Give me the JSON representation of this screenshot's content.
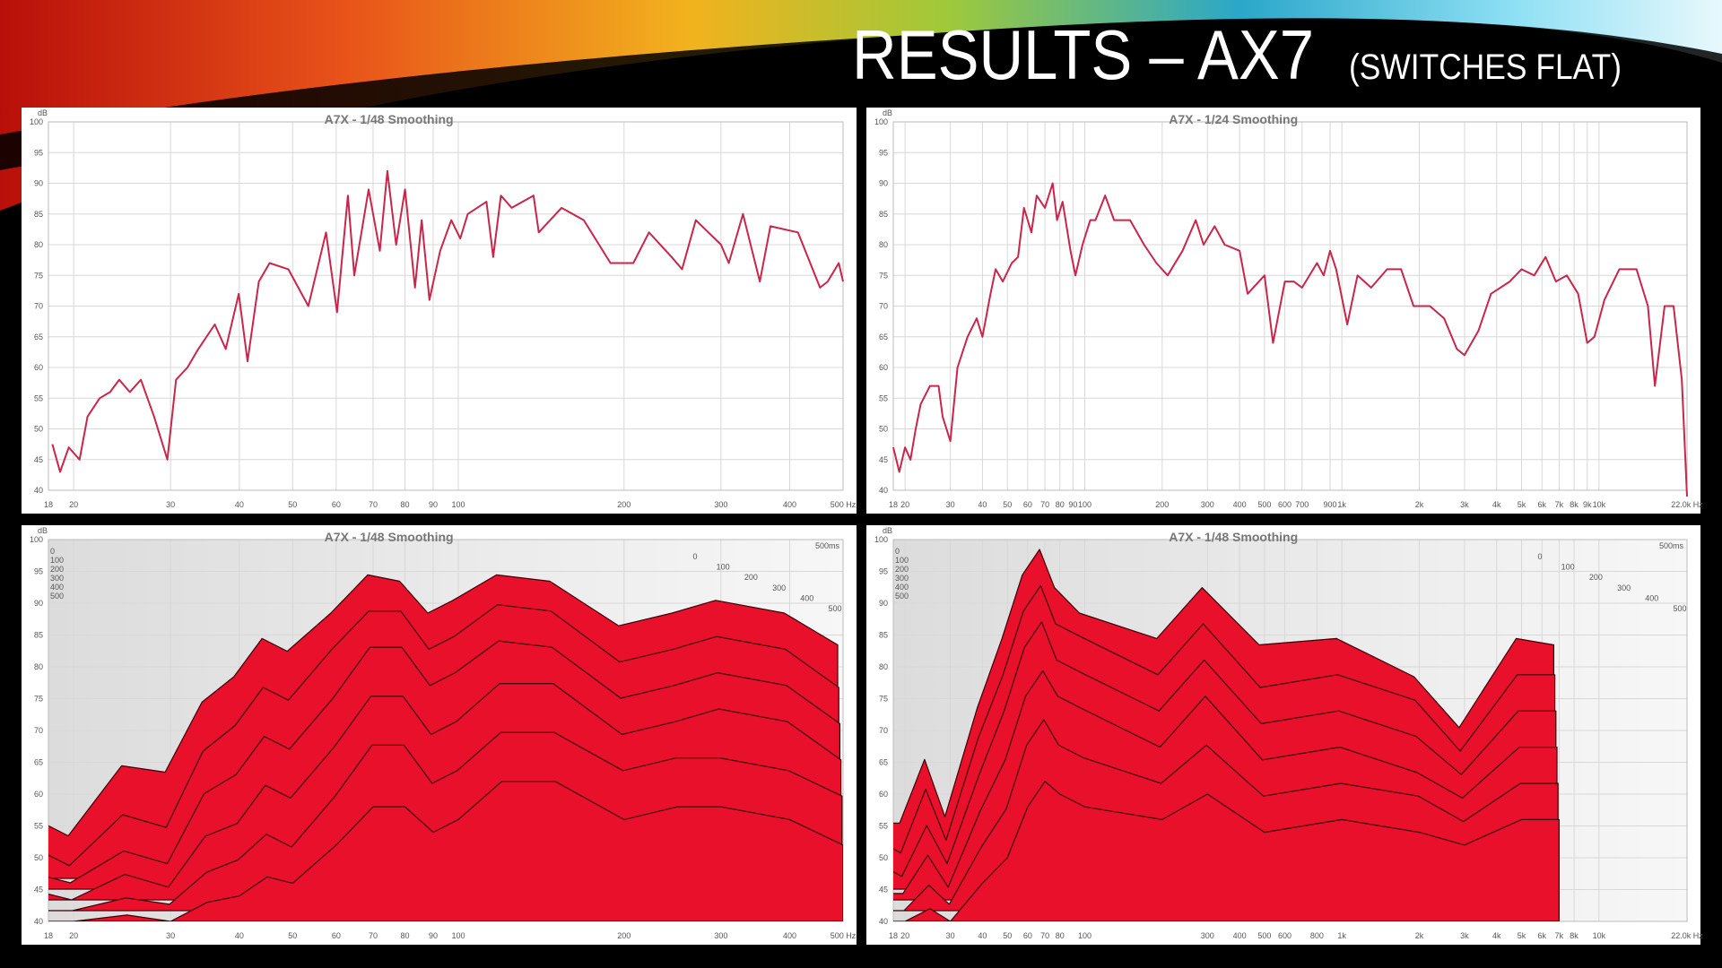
{
  "title": "RESULTS – AX7",
  "subtitle": "(SWITCHES FLAT)",
  "chart_data": [
    {
      "type": "line",
      "title": "A7X - 1/48 Smoothing",
      "y_label": "dB",
      "xscale": "log",
      "color": "#c8264a",
      "grid": true,
      "xlim": [
        18,
        500
      ],
      "ylim": [
        40,
        100
      ],
      "yticks": [
        40,
        45,
        50,
        55,
        60,
        65,
        70,
        75,
        80,
        85,
        90,
        95,
        100
      ],
      "xticks": [
        18,
        20,
        30,
        40,
        50,
        60,
        70,
        80,
        90,
        100,
        200,
        300,
        400,
        {
          "value": 500,
          "label": "500 Hz"
        }
      ],
      "x": [
        18.3,
        18.9,
        19.6,
        20.5,
        21.2,
        22.3,
        23.3,
        24.2,
        25.3,
        26.5,
        28.0,
        29.6,
        30.7,
        32.2,
        33.7,
        36.1,
        37.8,
        39.9,
        41.4,
        43.4,
        45.4,
        49.1,
        53.4,
        57.5,
        60.2,
        63,
        64.7,
        68.7,
        72,
        74.3,
        77.1,
        80,
        83.4,
        85.8,
        88.6,
        92.7,
        97.1,
        100.8,
        104,
        112.5,
        115.7,
        119.5,
        125,
        137,
        140,
        154,
        169,
        189,
        208,
        222,
        244,
        255,
        270,
        300,
        310,
        329,
        353,
        369,
        414,
        454,
        469,
        491,
        500
      ],
      "values": [
        47.5,
        43,
        47,
        45,
        52,
        55,
        56,
        58,
        56,
        58,
        52,
        45,
        58,
        60,
        63,
        67,
        63,
        72,
        61,
        74,
        77,
        76,
        70,
        82,
        69,
        88,
        75,
        89,
        79,
        92,
        80,
        89,
        73,
        84,
        71,
        79,
        84,
        81,
        85,
        87,
        78,
        88,
        86,
        88,
        82,
        86,
        84,
        77,
        77,
        82,
        78,
        76,
        84,
        80,
        77,
        85,
        74,
        83,
        82,
        73,
        74,
        77,
        74
      ]
    },
    {
      "type": "line",
      "title": "A7X - 1/24 Smoothing",
      "y_label": "dB",
      "xscale": "log",
      "color": "#c8264a",
      "grid": true,
      "xlim": [
        18,
        22000
      ],
      "ylim": [
        40,
        100
      ],
      "yticks": [
        40,
        45,
        50,
        55,
        60,
        65,
        70,
        75,
        80,
        85,
        90,
        95,
        100
      ],
      "xticks": [
        18,
        20,
        30,
        40,
        50,
        60,
        70,
        80,
        90,
        100,
        200,
        300,
        400,
        500,
        600,
        700,
        900,
        {
          "value": 1000,
          "label": "1k"
        },
        {
          "value": 2000,
          "label": "2k"
        },
        {
          "value": 3000,
          "label": "3k"
        },
        {
          "value": 4000,
          "label": "4k"
        },
        {
          "value": 5000,
          "label": "5k"
        },
        {
          "value": 6000,
          "label": "6k"
        },
        {
          "value": 7000,
          "label": "7k"
        },
        {
          "value": 8000,
          "label": "8k"
        },
        {
          "value": 9000,
          "label": "9k"
        },
        {
          "value": 10000,
          "label": "10k"
        },
        {
          "value": 22000,
          "label": "22.0k Hz"
        }
      ],
      "x": [
        18,
        19,
        20,
        21,
        22,
        23,
        25,
        27,
        28,
        30,
        32,
        35,
        38,
        40,
        43,
        45,
        48,
        52,
        55,
        58,
        62,
        65,
        70,
        75,
        78,
        82,
        88,
        92,
        98,
        105,
        110,
        120,
        130,
        150,
        170,
        190,
        210,
        240,
        270,
        290,
        320,
        350,
        400,
        430,
        500,
        540,
        600,
        650,
        700,
        800,
        850,
        900,
        950,
        1050,
        1150,
        1300,
        1500,
        1700,
        1900,
        2200,
        2500,
        2800,
        3000,
        3400,
        3800,
        4500,
        5000,
        5600,
        6200,
        6800,
        7500,
        8300,
        9000,
        9600,
        10500,
        12000,
        14000,
        15500,
        16500,
        18000,
        19500,
        21000,
        22000
      ],
      "values": [
        47,
        43,
        47,
        45,
        50,
        54,
        57,
        57,
        52,
        48,
        60,
        65,
        68,
        65,
        72,
        76,
        74,
        77,
        78,
        86,
        82,
        88,
        86,
        90,
        84,
        87,
        79,
        75,
        80,
        84,
        84,
        88,
        84,
        84,
        80,
        77,
        75,
        79,
        84,
        80,
        83,
        80,
        79,
        72,
        75,
        64,
        74,
        74,
        73,
        77,
        75,
        79,
        76,
        67,
        75,
        73,
        76,
        76,
        70,
        70,
        68,
        63,
        62,
        66,
        72,
        74,
        76,
        75,
        78,
        74,
        75,
        72,
        64,
        65,
        71,
        76,
        76,
        70,
        57,
        70,
        70,
        58,
        39
      ]
    },
    {
      "type": "waterfall",
      "title": "A7X - 1/48 Smoothing",
      "y_label": "dB",
      "xscale": "log",
      "color": "#e8102a",
      "grid": true,
      "xlim": [
        18,
        500
      ],
      "ylim": [
        40,
        100
      ],
      "yticks": [
        40,
        45,
        50,
        55,
        60,
        65,
        70,
        75,
        80,
        85,
        90,
        95,
        100
      ],
      "xticks": [
        18,
        20,
        30,
        40,
        50,
        60,
        70,
        80,
        90,
        100,
        200,
        300,
        400,
        {
          "value": 500,
          "label": "500 Hz"
        }
      ],
      "time_ticks": [
        0,
        100,
        200,
        300,
        400,
        500
      ],
      "time_label": "500ms",
      "x": [
        18,
        20,
        25,
        30,
        35,
        40,
        45,
        50,
        60,
        70,
        80,
        90,
        100,
        120,
        150,
        200,
        250,
        300,
        400,
        500
      ],
      "slices": [
        [
          47,
          45,
          56,
          55,
          66,
          70,
          76,
          74,
          80,
          86,
          85,
          80,
          82,
          86,
          85,
          78,
          80,
          82,
          80,
          75
        ],
        [
          44,
          42,
          50,
          48,
          60,
          64,
          70,
          68,
          76,
          82,
          82,
          76,
          78,
          83,
          82,
          74,
          76,
          78,
          76,
          70
        ],
        [
          42,
          41,
          46,
          44,
          55,
          58,
          64,
          62,
          70,
          78,
          78,
          72,
          74,
          79,
          78,
          70,
          72,
          74,
          72,
          66
        ],
        [
          41,
          40,
          44,
          42,
          50,
          52,
          58,
          56,
          64,
          72,
          72,
          66,
          68,
          74,
          74,
          66,
          68,
          70,
          68,
          62
        ],
        [
          40,
          40,
          42,
          41,
          46,
          48,
          52,
          50,
          58,
          66,
          66,
          60,
          62,
          68,
          68,
          62,
          64,
          64,
          62,
          58
        ],
        [
          40,
          40,
          41,
          40,
          43,
          44,
          47,
          46,
          52,
          58,
          58,
          54,
          56,
          62,
          62,
          56,
          58,
          58,
          56,
          52
        ]
      ]
    },
    {
      "type": "waterfall",
      "title": "A7X - 1/48 Smoothing",
      "y_label": "dB",
      "xscale": "log",
      "color": "#e8102a",
      "grid": true,
      "xlim": [
        18,
        22000
      ],
      "ylim": [
        40,
        100
      ],
      "yticks": [
        40,
        45,
        50,
        55,
        60,
        65,
        70,
        75,
        80,
        85,
        90,
        95,
        100
      ],
      "xticks": [
        18,
        20,
        30,
        40,
        50,
        60,
        70,
        80,
        100,
        300,
        400,
        500,
        600,
        800,
        {
          "value": 1000,
          "label": "1k"
        },
        {
          "value": 2000,
          "label": "2k"
        },
        {
          "value": 3000,
          "label": "3k"
        },
        {
          "value": 4000,
          "label": "4k"
        },
        {
          "value": 5000,
          "label": "5k"
        },
        {
          "value": 6000,
          "label": "6k"
        },
        {
          "value": 7000,
          "label": "7k"
        },
        {
          "value": 8000,
          "label": "8k"
        },
        {
          "value": 10000,
          "label": "10k"
        },
        {
          "value": 22000,
          "label": "22.0k Hz"
        }
      ],
      "time_ticks": [
        0,
        100,
        200,
        300,
        400,
        500
      ],
      "time_label": "500ms",
      "x": [
        18,
        20,
        25,
        30,
        40,
        50,
        60,
        70,
        80,
        100,
        200,
        300,
        500,
        1000,
        2000,
        3000,
        5000,
        7000
      ],
      "slices": [
        [
          47,
          47,
          57,
          48,
          65,
          76,
          86,
          90,
          84,
          80,
          76,
          84,
          75,
          76,
          70,
          62,
          76,
          75
        ],
        [
          45,
          44,
          54,
          46,
          62,
          72,
          82,
          86,
          80,
          78,
          72,
          80,
          70,
          72,
          68,
          60,
          72,
          72
        ],
        [
          43,
          42,
          50,
          44,
          58,
          68,
          78,
          82,
          76,
          74,
          68,
          76,
          66,
          68,
          64,
          58,
          68,
          68
        ],
        [
          41,
          41,
          47,
          42,
          54,
          62,
          72,
          76,
          72,
          70,
          64,
          72,
          62,
          64,
          60,
          56,
          64,
          64
        ],
        [
          40,
          40,
          44,
          41,
          50,
          56,
          66,
          70,
          66,
          64,
          60,
          66,
          58,
          60,
          58,
          54,
          60,
          60
        ],
        [
          40,
          40,
          42,
          40,
          46,
          50,
          58,
          62,
          60,
          58,
          56,
          60,
          54,
          56,
          54,
          52,
          56,
          56
        ]
      ]
    }
  ]
}
